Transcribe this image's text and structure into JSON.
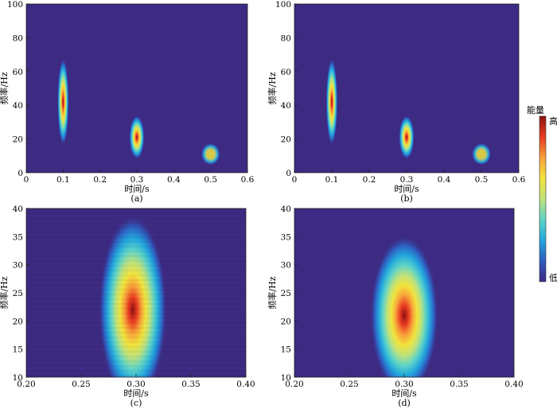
{
  "colorbar": {
    "title": "能量",
    "high_label": "高",
    "low_label": "低",
    "stops": [
      "#3d2a82",
      "#2f5bbf",
      "#22a7de",
      "#5fd4c6",
      "#bfe27b",
      "#f2e33c",
      "#f7a13a",
      "#e93a22",
      "#8b1212"
    ]
  },
  "panels": [
    {
      "caption": "(a)",
      "smooth": true,
      "chart_data": {
        "type": "heatmap",
        "xlabel": "时间/s",
        "ylabel": "频率/Hz",
        "xlim": [
          0,
          0.6
        ],
        "ylim": [
          0,
          100
        ],
        "xticks": [
          0,
          0.1,
          0.2,
          0.3,
          0.4,
          0.5,
          0.6
        ],
        "yticks": [
          0,
          20,
          40,
          60,
          80,
          100
        ],
        "xtick_labels": [
          "0",
          "0.1",
          "0.2",
          "0.3",
          "0.4",
          "0.5",
          "0.6"
        ],
        "ytick_labels": [
          "0",
          "20",
          "40",
          "60",
          "80",
          "100"
        ],
        "energy_blobs": [
          {
            "t": 0.1,
            "f": 42,
            "t_spread": 0.006,
            "f_spread": 10,
            "peak": 1.0
          },
          {
            "t": 0.3,
            "f": 21,
            "t_spread": 0.008,
            "f_spread": 5,
            "peak": 0.95
          },
          {
            "t": 0.5,
            "f": 11,
            "t_spread": 0.01,
            "f_spread": 2.5,
            "peak": 0.55
          }
        ]
      }
    },
    {
      "caption": "(b)",
      "smooth": true,
      "chart_data": {
        "type": "heatmap",
        "xlabel": "时间/s",
        "ylabel": "频率/Hz",
        "xlim": [
          0,
          0.6
        ],
        "ylim": [
          0,
          100
        ],
        "xticks": [
          0,
          0.1,
          0.2,
          0.3,
          0.4,
          0.5,
          0.6
        ],
        "yticks": [
          0,
          20,
          40,
          60,
          80,
          100
        ],
        "xtick_labels": [
          "0",
          "0.1",
          "0.2",
          "0.3",
          "0.4",
          "0.5",
          "0.6"
        ],
        "ytick_labels": [
          "0",
          "20",
          "40",
          "60",
          "80",
          "100"
        ],
        "energy_blobs": [
          {
            "t": 0.1,
            "f": 42,
            "t_spread": 0.006,
            "f_spread": 10,
            "peak": 1.0
          },
          {
            "t": 0.3,
            "f": 21,
            "t_spread": 0.008,
            "f_spread": 5,
            "peak": 0.95
          },
          {
            "t": 0.5,
            "f": 11,
            "t_spread": 0.01,
            "f_spread": 2.5,
            "peak": 0.55
          }
        ]
      }
    },
    {
      "caption": "(c)",
      "smooth": false,
      "chart_data": {
        "type": "heatmap",
        "xlabel": "时间/s",
        "ylabel": "频率/Hz",
        "xlim": [
          0.2,
          0.4
        ],
        "ylim": [
          10,
          40
        ],
        "xticks": [
          0.2,
          0.25,
          0.3,
          0.35,
          0.4
        ],
        "yticks": [
          10,
          15,
          20,
          25,
          30,
          35,
          40
        ],
        "xtick_labels": [
          "0.20",
          "0.25",
          "0.30",
          "0.35",
          "0.40"
        ],
        "ytick_labels": [
          "10",
          "15",
          "20",
          "25",
          "30",
          "35",
          "40"
        ],
        "energy_blobs": [
          {
            "t": 0.297,
            "f": 22,
            "t_spread": 0.012,
            "f_spread": 6.5,
            "peak": 0.95
          }
        ]
      }
    },
    {
      "caption": "(d)",
      "smooth": true,
      "chart_data": {
        "type": "heatmap",
        "xlabel": "时间/s",
        "ylabel": "频率/Hz",
        "xlim": [
          0.2,
          0.4
        ],
        "ylim": [
          10,
          40
        ],
        "xticks": [
          0.2,
          0.25,
          0.3,
          0.35,
          0.4
        ],
        "yticks": [
          10,
          15,
          20,
          25,
          30,
          35,
          40
        ],
        "xtick_labels": [
          "0.20",
          "0.25",
          "0.30",
          "0.35",
          "0.40"
        ],
        "ytick_labels": [
          "10",
          "15",
          "20",
          "25",
          "30",
          "35",
          "40"
        ],
        "energy_blobs": [
          {
            "t": 0.3,
            "f": 21,
            "t_spread": 0.012,
            "f_spread": 5.5,
            "peak": 0.92
          }
        ]
      }
    }
  ]
}
